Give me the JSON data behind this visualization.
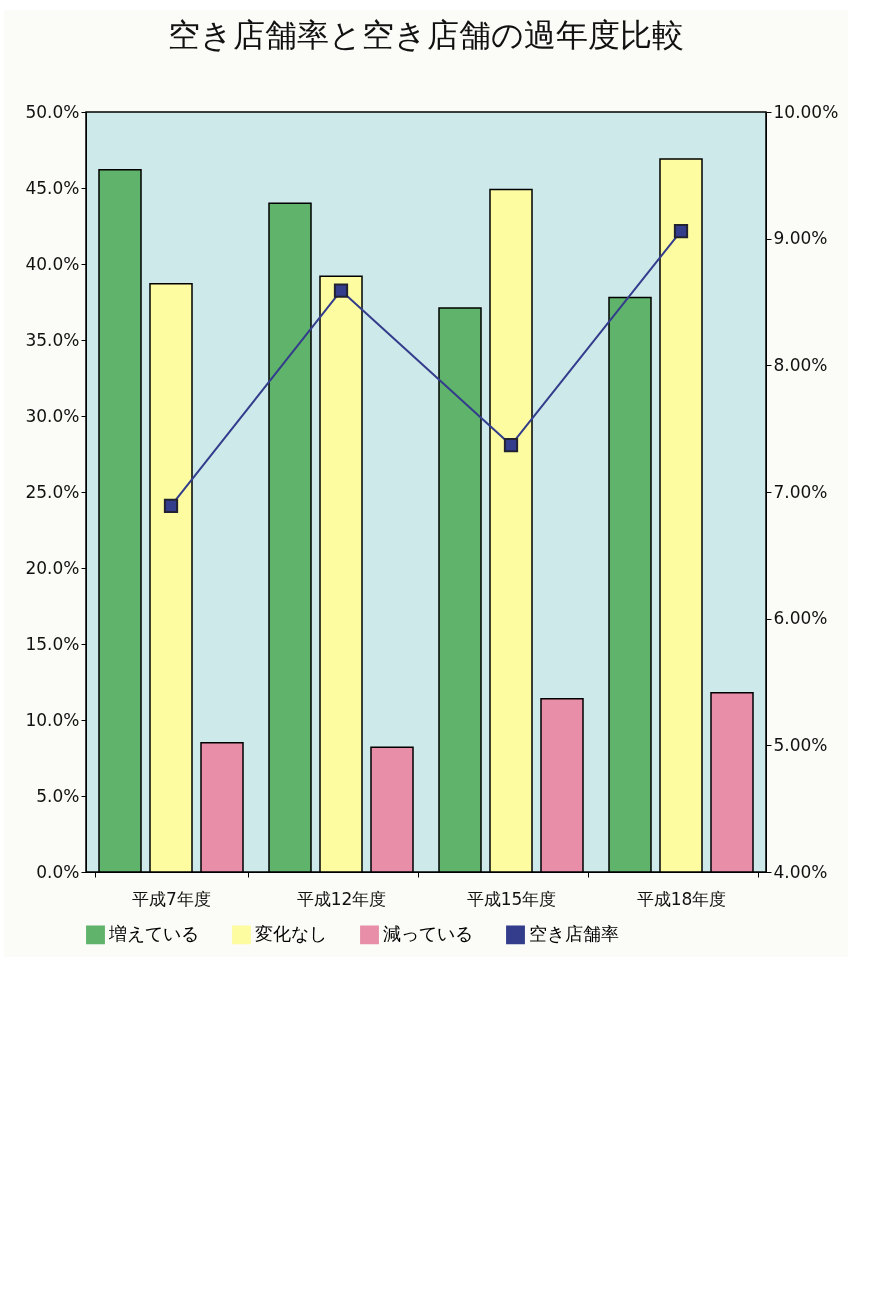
{
  "chart_data": {
    "type": "bar",
    "title": "空き店舗率と空き店舗の過年度比較",
    "categories": [
      "平成7年度",
      "平成12年度",
      "平成15年度",
      "平成18年度"
    ],
    "series": [
      {
        "name": "増えている",
        "color": "#5fb36a",
        "values": [
          46.2,
          44.0,
          37.1,
          37.8
        ]
      },
      {
        "name": "変化なし",
        "color": "#fdfca0",
        "values": [
          38.7,
          39.2,
          44.9,
          46.9
        ]
      },
      {
        "name": "減っている",
        "color": "#e98ea9",
        "values": [
          8.5,
          8.2,
          11.4,
          11.8
        ]
      },
      {
        "name": "空き店舗率",
        "color": "#333d8c",
        "type": "line",
        "axis": "y2",
        "values": [
          6.89,
          8.59,
          7.37,
          9.06
        ]
      }
    ],
    "ylim": [
      0,
      50
    ],
    "yticks": [
      {
        "value": 0,
        "label": "0.0%"
      },
      {
        "value": 5,
        "label": "5.0%"
      },
      {
        "value": 10,
        "label": "10.0%"
      },
      {
        "value": 15,
        "label": "15.0%"
      },
      {
        "value": 20,
        "label": "20.0%"
      },
      {
        "value": 25,
        "label": "25.0%"
      },
      {
        "value": 30,
        "label": "30.0%"
      },
      {
        "value": 35,
        "label": "35.0%"
      },
      {
        "value": 40,
        "label": "40.0%"
      },
      {
        "value": 45,
        "label": "45.0%"
      },
      {
        "value": 50,
        "label": "50.0%"
      }
    ],
    "y2lim": [
      4,
      10
    ],
    "y2ticks": [
      {
        "value": 4,
        "label": "4.00%"
      },
      {
        "value": 5,
        "label": "5.00%"
      },
      {
        "value": 6,
        "label": "6.00%"
      },
      {
        "value": 7,
        "label": "7.00%"
      },
      {
        "value": 8,
        "label": "8.00%"
      },
      {
        "value": 9,
        "label": "9.00%"
      },
      {
        "value": 10,
        "label": "10.00%"
      }
    ],
    "marker": "square",
    "legend": "bottom"
  }
}
